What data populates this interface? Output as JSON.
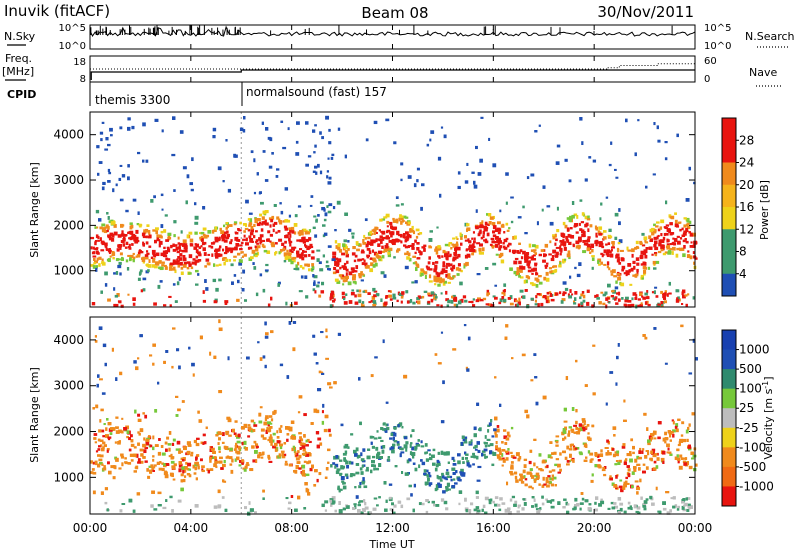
{
  "header": {
    "station": "Inuvik (fitACF)",
    "beam": "Beam 08",
    "date": "30/Nov/2011"
  },
  "side_labels": {
    "nsky": "N.Sky",
    "freq": "Freq.",
    "mhz": "[MHz]",
    "cpid": "CPID",
    "nsearch": "N.Search",
    "nave": "Nave"
  },
  "cpid_labels": [
    "themis 3300",
    "normalsound (fast) 157"
  ],
  "colors": {
    "red": "#e8140f",
    "orange": "#f08a1c",
    "amber": "#f5b31b",
    "yellow": "#eed21a",
    "green": "#76c83a",
    "teal": "#3e9a6e",
    "gray": "#bdbdbd",
    "blue": "#1f4fb4"
  },
  "chart_data": [
    {
      "type": "line",
      "name": "noise",
      "x_ticks": [
        "00:00",
        "04:00",
        "08:00",
        "12:00",
        "16:00",
        "20:00",
        "00:00"
      ],
      "left_ticks": [
        "10^5",
        "10^0"
      ],
      "right_ticks": [
        "10^5",
        "10^0"
      ],
      "log_scale": true
    },
    {
      "type": "line",
      "name": "frequency",
      "left_ticks": [
        "18",
        "8"
      ],
      "right_ticks": [
        "60",
        "0"
      ],
      "right_ylim": [
        0,
        60
      ],
      "cpid_change_hour": 6.0,
      "nave_hours": [
        0,
        6,
        8.5,
        12,
        13.5,
        18,
        20.5,
        21,
        22.5,
        24
      ],
      "nave_values": [
        30,
        30,
        30,
        30,
        30,
        30,
        33,
        38,
        42,
        42
      ]
    },
    {
      "type": "heatmap",
      "name": "power",
      "ylabel": "Slant Range [km]",
      "y_ticks": [
        "1000",
        "2000",
        "3000",
        "4000"
      ],
      "ylim": [
        200,
        4500
      ],
      "colorbar_label": "Power [dB]",
      "colorbar_ticks": [
        "4",
        "8",
        "12",
        "16",
        "20",
        "24",
        "28"
      ],
      "colorbar_range": [
        0,
        32
      ]
    },
    {
      "type": "heatmap",
      "name": "velocity",
      "ylabel": "Slant Range [km]",
      "xlabel": "Time UT",
      "x_ticks": [
        "00:00",
        "04:00",
        "08:00",
        "12:00",
        "16:00",
        "20:00",
        "00:00"
      ],
      "y_ticks": [
        "1000",
        "2000",
        "3000",
        "4000"
      ],
      "ylim": [
        200,
        4500
      ],
      "colorbar_label": "Velocity [m s^-1]",
      "colorbar_ticks": [
        "1000",
        "500",
        "100",
        "25",
        "-25",
        "-100",
        "-500",
        "-1000"
      ]
    }
  ]
}
